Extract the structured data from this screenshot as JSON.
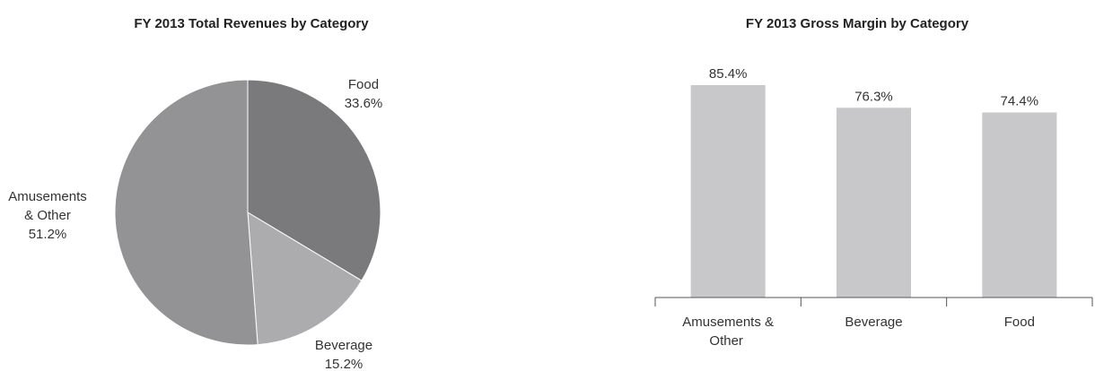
{
  "chart_data": [
    {
      "type": "pie",
      "title": "FY 2013 Total Revenues by Category",
      "slices": [
        {
          "label": [
            "Food"
          ],
          "value": 33.6,
          "value_label": "33.6%",
          "color": "#7a7a7c"
        },
        {
          "label": [
            "Beverage"
          ],
          "value": 15.2,
          "value_label": "15.2%",
          "color": "#acacae"
        },
        {
          "label": [
            "Amusements",
            "& Other"
          ],
          "value": 51.2,
          "value_label": "51.2%",
          "color": "#939395"
        }
      ],
      "start": "12 o'clock",
      "direction": "clockwise"
    },
    {
      "type": "bar",
      "title": "FY 2013 Gross Margin by Category",
      "categories": [
        [
          "Amusements &",
          "Other"
        ],
        [
          "Beverage"
        ],
        [
          "Food"
        ]
      ],
      "values": [
        85.4,
        76.3,
        74.4
      ],
      "value_labels": [
        "85.4%",
        "76.3%",
        "74.4%"
      ],
      "bar_color": "#c8c8ca",
      "xlabel": "",
      "ylabel": "",
      "ylim": [
        0,
        100
      ],
      "grid": false
    }
  ]
}
